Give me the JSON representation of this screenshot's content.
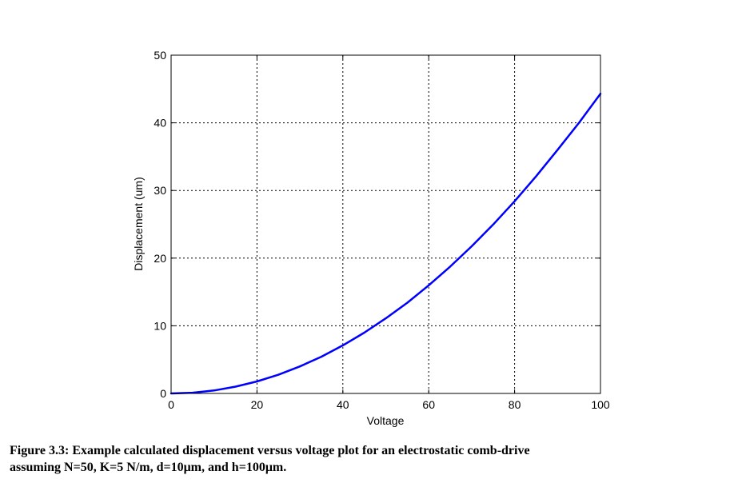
{
  "chart_data": {
    "type": "line",
    "xlabel": "Voltage",
    "ylabel": "Displacement (um)",
    "xlim": [
      0,
      100
    ],
    "ylim": [
      0,
      50
    ],
    "xticks": [
      "0",
      "20",
      "40",
      "60",
      "80",
      "100"
    ],
    "yticks": [
      "0",
      "10",
      "20",
      "30",
      "40",
      "50"
    ],
    "grid": true,
    "series": [
      {
        "color": "#0000ff",
        "x": [
          0,
          5,
          10,
          15,
          20,
          25,
          30,
          35,
          40,
          45,
          50,
          55,
          60,
          65,
          70,
          75,
          80,
          85,
          90,
          95,
          100
        ],
        "y": [
          0,
          0.11,
          0.44,
          1.0,
          1.77,
          2.77,
          3.99,
          5.43,
          7.1,
          8.98,
          11.1,
          13.4,
          15.98,
          18.75,
          21.75,
          24.96,
          28.4,
          32.1,
          36.0,
          40.0,
          44.3
        ]
      }
    ]
  },
  "caption": {
    "line1": "Figure 3.3: Example calculated displacement versus voltage plot for an electrostatic comb-drive",
    "line2": "assuming N=50, K=5 N/m, d=10μm, and h=100μm."
  }
}
